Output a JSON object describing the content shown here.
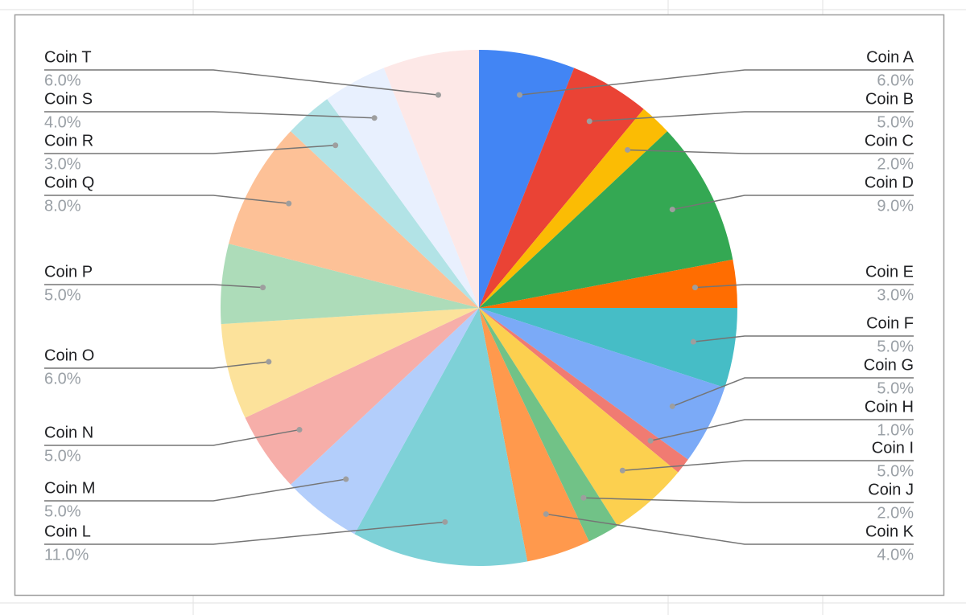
{
  "chart_data": {
    "type": "pie",
    "categories": [
      "Coin A",
      "Coin B",
      "Coin C",
      "Coin D",
      "Coin E",
      "Coin F",
      "Coin G",
      "Coin H",
      "Coin I",
      "Coin J",
      "Coin K",
      "Coin L",
      "Coin M",
      "Coin N",
      "Coin O",
      "Coin P",
      "Coin Q",
      "Coin R",
      "Coin S",
      "Coin T"
    ],
    "values": [
      6,
      5,
      2,
      9,
      3,
      5,
      5,
      1,
      5,
      2,
      4,
      11,
      5,
      5,
      6,
      5,
      8,
      3,
      4,
      6
    ],
    "value_labels": [
      "6.0%",
      "5.0%",
      "2.0%",
      "9.0%",
      "3.0%",
      "5.0%",
      "5.0%",
      "1.0%",
      "5.0%",
      "2.0%",
      "4.0%",
      "11.0%",
      "5.0%",
      "5.0%",
      "6.0%",
      "5.0%",
      "8.0%",
      "3.0%",
      "4.0%",
      "6.0%"
    ],
    "colors": [
      "#4285f4",
      "#ea4335",
      "#fbbc04",
      "#34a853",
      "#ff6d01",
      "#46bdc6",
      "#7baaf7",
      "#f07b72",
      "#fcd04f",
      "#71c287",
      "#ff994d",
      "#7ed1d7",
      "#b3cefb",
      "#f6aea9",
      "#fce29b",
      "#addcb9",
      "#fdc197",
      "#b2e3e6",
      "#e8f0fe",
      "#fde8e7"
    ]
  }
}
